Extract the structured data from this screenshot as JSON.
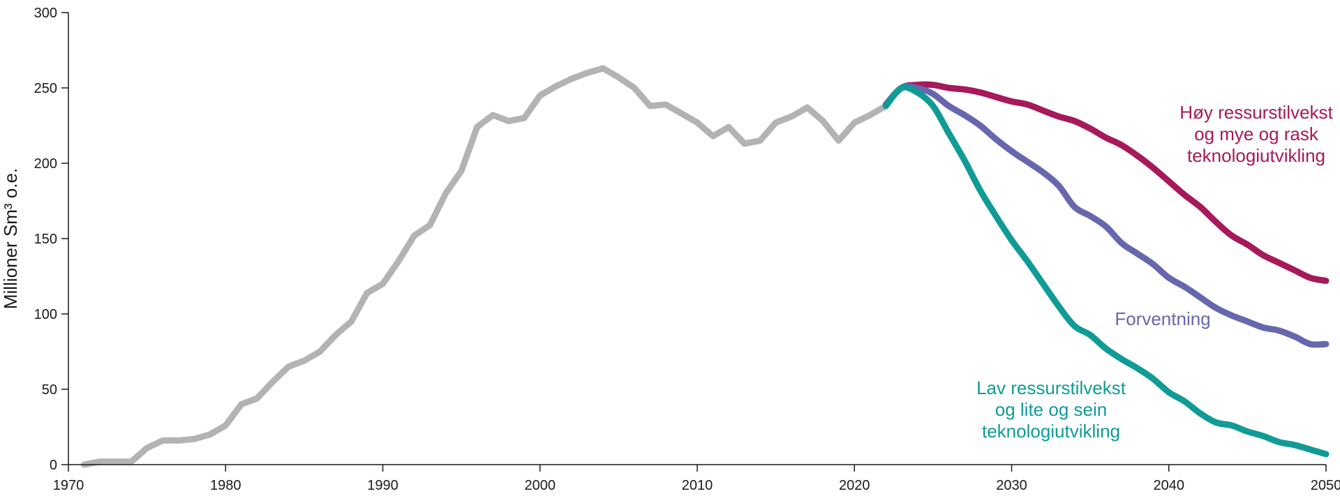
{
  "chart_data": {
    "type": "line",
    "title": "",
    "xlabel": "",
    "ylabel": "Millioner Sm³ o.e.",
    "xlim": [
      1970,
      2050
    ],
    "ylim": [
      0,
      300
    ],
    "x_ticks": [
      "1970",
      "1980",
      "1990",
      "2000",
      "2010",
      "2020",
      "2030",
      "2040",
      "2050"
    ],
    "y_ticks": [
      "0",
      "50",
      "100",
      "150",
      "200",
      "250",
      "300"
    ],
    "grid": false,
    "colors": {
      "historical": "#b3b3b3",
      "high": "#a6195a",
      "expected": "#6667ad",
      "low": "#109b96"
    },
    "series": [
      {
        "key": "historical",
        "name": "",
        "x": [
          1971,
          1972,
          1973,
          1974,
          1975,
          1976,
          1977,
          1978,
          1979,
          1980,
          1981,
          1982,
          1983,
          1984,
          1985,
          1986,
          1987,
          1988,
          1989,
          1990,
          1991,
          1992,
          1993,
          1994,
          1995,
          1996,
          1997,
          1998,
          1999,
          2000,
          2001,
          2002,
          2003,
          2004,
          2005,
          2006,
          2007,
          2008,
          2009,
          2010,
          2011,
          2012,
          2013,
          2014,
          2015,
          2016,
          2017,
          2018,
          2019,
          2020,
          2021,
          2022
        ],
        "values": [
          0,
          2,
          2,
          2,
          11,
          16,
          16,
          17,
          20,
          26,
          40,
          44,
          55,
          65,
          69,
          75,
          86,
          95,
          114,
          120,
          135,
          152,
          159,
          180,
          195,
          224,
          232,
          228,
          230,
          245,
          251,
          256,
          260,
          263,
          257,
          250,
          238,
          239,
          233,
          227,
          218,
          224,
          213,
          215,
          227,
          231,
          237,
          228,
          215,
          227,
          232,
          238
        ]
      },
      {
        "key": "high",
        "name": "Høy ressurstilvekst og mye og rask teknologiutvikling",
        "x": [
          2022,
          2023,
          2024,
          2025,
          2026,
          2027,
          2028,
          2029,
          2030,
          2031,
          2032,
          2033,
          2034,
          2035,
          2036,
          2037,
          2038,
          2039,
          2040,
          2041,
          2042,
          2043,
          2044,
          2045,
          2046,
          2047,
          2048,
          2049,
          2050
        ],
        "values": [
          239,
          250,
          252,
          252,
          250,
          249,
          247,
          244,
          241,
          239,
          235,
          231,
          228,
          223,
          217,
          212,
          205,
          197,
          188,
          179,
          171,
          161,
          152,
          146,
          139,
          134,
          129,
          124,
          122
        ]
      },
      {
        "key": "expected",
        "name": "Forventning",
        "x": [
          2022,
          2023,
          2024,
          2025,
          2026,
          2027,
          2028,
          2029,
          2030,
          2031,
          2032,
          2033,
          2034,
          2035,
          2036,
          2037,
          2038,
          2039,
          2040,
          2041,
          2042,
          2043,
          2044,
          2045,
          2046,
          2047,
          2048,
          2049,
          2050
        ],
        "values": [
          239,
          250,
          250,
          246,
          238,
          232,
          225,
          216,
          208,
          201,
          194,
          185,
          171,
          165,
          158,
          147,
          140,
          133,
          124,
          118,
          111,
          104,
          99,
          95,
          91,
          89,
          85,
          80,
          80
        ]
      },
      {
        "key": "low",
        "name": "Lav ressurstilvekst og lite og sein teknologiutvikling",
        "x": [
          2022,
          2023,
          2024,
          2025,
          2026,
          2027,
          2028,
          2029,
          2030,
          2031,
          2032,
          2033,
          2034,
          2035,
          2036,
          2037,
          2038,
          2039,
          2040,
          2041,
          2042,
          2043,
          2044,
          2045,
          2046,
          2047,
          2048,
          2049,
          2050
        ],
        "values": [
          238,
          250,
          247,
          238,
          220,
          202,
          182,
          165,
          149,
          135,
          120,
          105,
          92,
          86,
          77,
          70,
          64,
          57,
          48,
          42,
          34,
          28,
          26,
          22,
          19,
          15,
          13,
          10,
          7
        ]
      }
    ],
    "annotations": [
      {
        "series": "high",
        "lines": [
          "Høy ressurstilvekst",
          "og mye og rask",
          "teknologiutvikling"
        ]
      },
      {
        "series": "expected",
        "lines": [
          "Forventning"
        ]
      },
      {
        "series": "low",
        "lines": [
          "Lav ressurstilvekst",
          "og lite og sein",
          "teknologiutvikling"
        ]
      }
    ]
  }
}
